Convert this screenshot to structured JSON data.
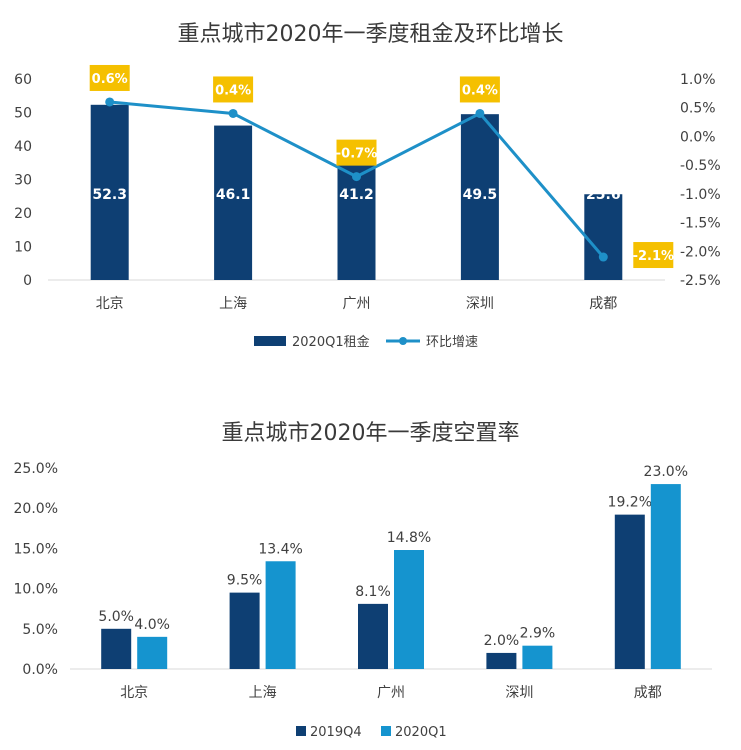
{
  "chart_data": [
    {
      "type": "bar+line",
      "title": "重点城市2020年一季度租金及环比增长",
      "categories": [
        "北京",
        "上海",
        "广州",
        "深圳",
        "成都"
      ],
      "series": [
        {
          "name": "2020Q1租金",
          "kind": "bar",
          "axis": "left",
          "color": "#0e3f73",
          "values": [
            52.3,
            46.1,
            41.2,
            49.5,
            25.6
          ],
          "labels": [
            "52.3",
            "46.1",
            "41.2",
            "49.5",
            "25.6"
          ]
        },
        {
          "name": "环比增速",
          "kind": "line",
          "axis": "right",
          "color": "#1e90c8",
          "values": [
            0.6,
            0.4,
            -0.7,
            0.4,
            -2.1
          ],
          "labels": [
            "0.6%",
            "0.4%",
            "-0.7%",
            "0.4%",
            "-2.1%"
          ]
        }
      ],
      "y_left": {
        "ylim": [
          0,
          60
        ],
        "ticks": [
          "0",
          "10",
          "20",
          "30",
          "40",
          "50",
          "60"
        ]
      },
      "y_right": {
        "ylim": [
          -2.5,
          1.0
        ],
        "ticks": [
          "-2.5%",
          "-2.0%",
          "-1.5%",
          "-1.0%",
          "-0.5%",
          "0.0%",
          "0.5%",
          "1.0%"
        ]
      },
      "label_box_color": "#f5c000",
      "legend": {
        "position": "bottom"
      }
    },
    {
      "type": "bar",
      "title": "重点城市2020年一季度空置率",
      "categories": [
        "北京",
        "上海",
        "广州",
        "深圳",
        "成都"
      ],
      "series": [
        {
          "name": "2019Q4",
          "color": "#0e3f73",
          "values": [
            5.0,
            9.5,
            8.1,
            2.0,
            19.2
          ],
          "labels": [
            "5.0%",
            "9.5%",
            "8.1%",
            "2.0%",
            "19.2%"
          ]
        },
        {
          "name": "2020Q1",
          "color": "#1594cf",
          "values": [
            4.0,
            13.4,
            14.8,
            2.9,
            23.0
          ],
          "labels": [
            "4.0%",
            "13.4%",
            "14.8%",
            "2.9%",
            "23.0%"
          ]
        }
      ],
      "ylim": [
        0,
        25
      ],
      "yticks": [
        "0.0%",
        "5.0%",
        "10.0%",
        "15.0%",
        "20.0%",
        "25.0%"
      ],
      "legend": {
        "position": "bottom"
      }
    }
  ]
}
